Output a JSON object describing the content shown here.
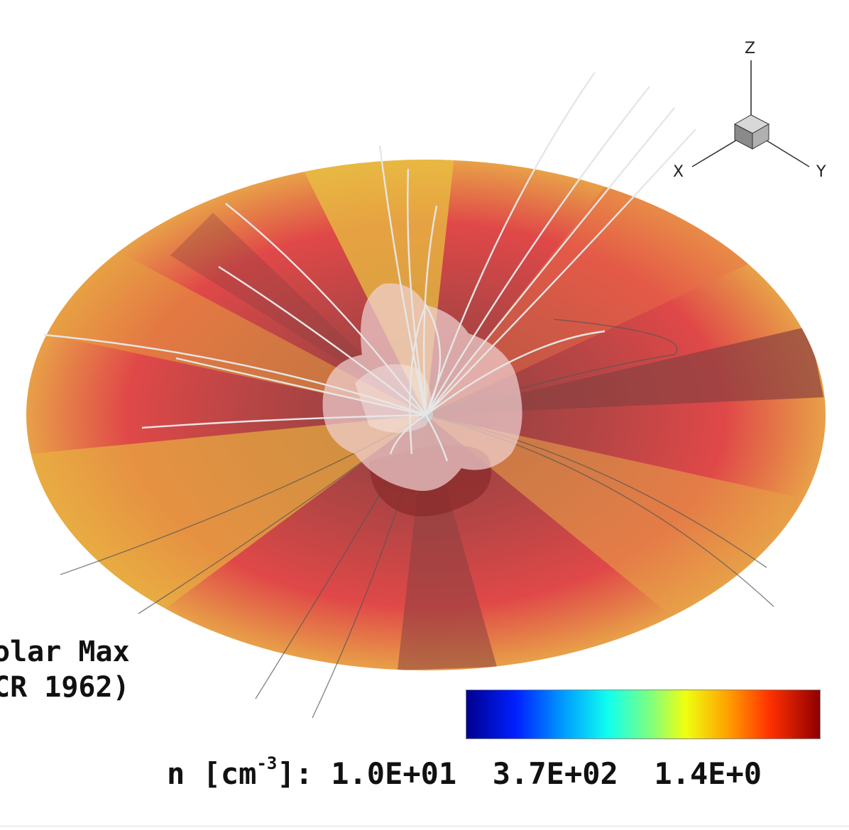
{
  "case_label": {
    "line1": "olar Max",
    "line2": "CR 1962)"
  },
  "legend": {
    "variable": "n [cm",
    "exponent": "-3",
    "suffix": "]:",
    "tick_values": "1.0E+01  3.7E+02  1.4E+0"
  },
  "axes": {
    "x": "X",
    "y": "Y",
    "z": "Z"
  },
  "colormap": [
    "#00008f",
    "#0020ff",
    "#00a0ff",
    "#10ffef",
    "#7fff80",
    "#f0ff10",
    "#ffa000",
    "#ff3000",
    "#8f0000"
  ]
}
